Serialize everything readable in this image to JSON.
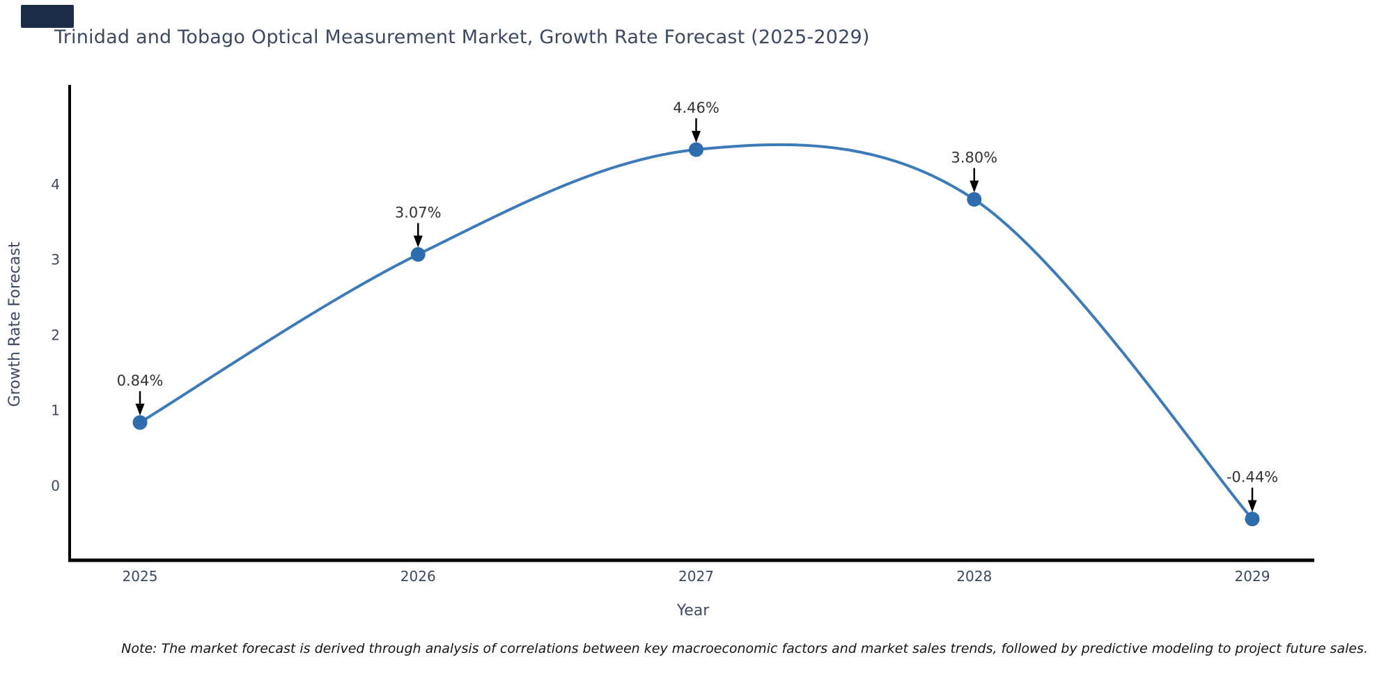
{
  "brand_block": {
    "color": "#1c2b4a"
  },
  "title": {
    "text": "Trinidad and Tobago Optical Measurement Market, Growth Rate Forecast (2025-2029)",
    "color": "#3c4961"
  },
  "note": {
    "text": "Note: The market forecast is derived through analysis of correlations between key macroeconomic factors and market sales trends, followed by predictive modeling to project future sales."
  },
  "chart_data": {
    "type": "line",
    "title": "Trinidad and Tobago Optical Measurement Market, Growth Rate Forecast (2025-2029)",
    "xlabel": "Year",
    "ylabel": "Growth Rate Forecast",
    "categories": [
      "2025",
      "2026",
      "2027",
      "2028",
      "2029"
    ],
    "values": [
      0.84,
      3.07,
      4.46,
      3.8,
      -0.44
    ],
    "point_labels": [
      "0.84%",
      "3.07%",
      "4.46%",
      "3.80%",
      "-0.44%"
    ],
    "y_ticks": [
      0,
      1,
      2,
      3,
      4
    ],
    "ylim": [
      -0.95,
      5.25
    ],
    "grid": false,
    "legend": "none",
    "smoothing": "spline",
    "line_color": "#3d7ab8",
    "marker_color": "#2e6dad",
    "annotation_color": "#333333",
    "axis_line_color": "#000000",
    "tick_label_color": "#3c4961",
    "axis_title_color": "#3c4961"
  }
}
